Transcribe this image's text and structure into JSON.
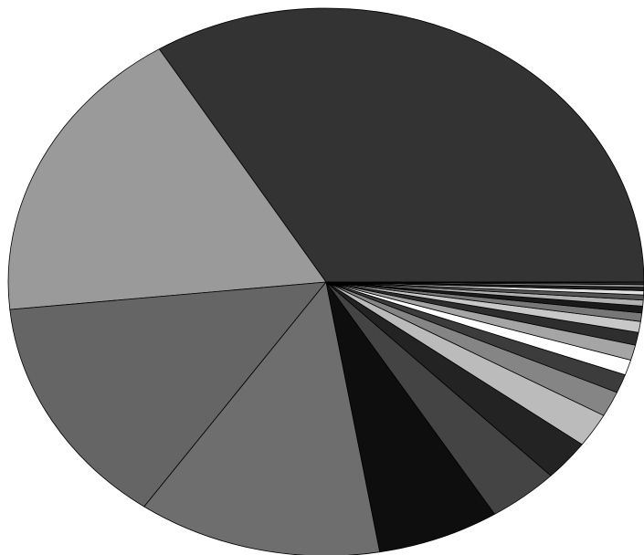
{
  "chart_data": {
    "type": "pie",
    "values": [
      33.8,
      17.8,
      13.7,
      12.4,
      6.2,
      3.6,
      2.4,
      2.0,
      1.5,
      1.1,
      0.9,
      0.9,
      0.75,
      0.65,
      0.5,
      0.4,
      0.35,
      0.3,
      0.25,
      0.2,
      0.15,
      0.1,
      0.05
    ],
    "colors": [
      "#333333",
      "#9a9a9a",
      "#656565",
      "#6e6e6e",
      "#0e0e0e",
      "#444444",
      "#232323",
      "#bbbbbb",
      "#858585",
      "#3c3c3c",
      "#ffffff",
      "#a5a5a5",
      "#2e2e2e",
      "#c8c8c8",
      "#777777",
      "#1a1a1a",
      "#b0b0b0",
      "#555555",
      "#e0e0e0",
      "#222222",
      "#999999",
      "#444444",
      "#dddddd"
    ]
  }
}
